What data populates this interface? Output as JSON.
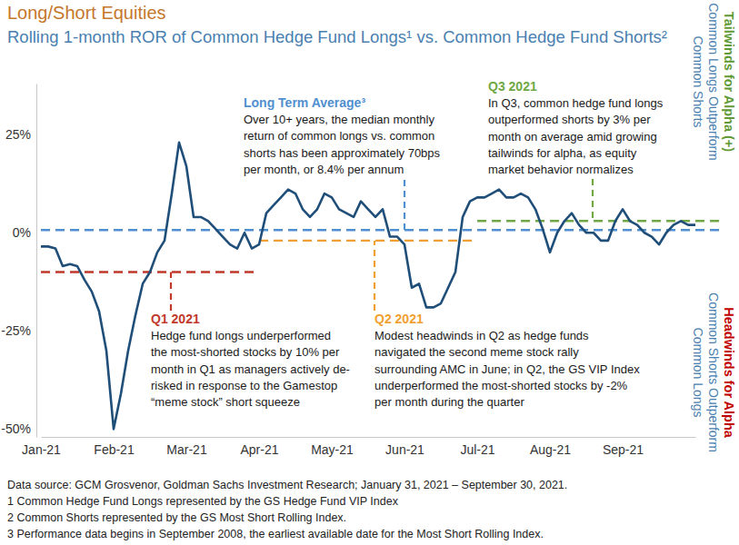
{
  "chart_data": {
    "type": "line",
    "title": "Long/Short Equities",
    "subtitle": "Rolling 1-month ROR of Common Hedge Fund Longs¹ vs. Common Hedge Fund Shorts²",
    "color": "#1f4e79",
    "categories": [
      "Jan-21",
      null,
      null,
      null,
      null,
      null,
      null,
      null,
      null,
      null,
      "Feb-21",
      null,
      null,
      null,
      null,
      null,
      null,
      null,
      null,
      null,
      "Mar-21",
      null,
      null,
      null,
      null,
      null,
      null,
      null,
      null,
      null,
      "Apr-21",
      null,
      null,
      null,
      null,
      null,
      null,
      null,
      null,
      null,
      "May-21",
      null,
      null,
      null,
      null,
      null,
      null,
      null,
      null,
      null,
      "Jun-21",
      null,
      null,
      null,
      null,
      null,
      null,
      null,
      null,
      null,
      "Jul-21",
      null,
      null,
      null,
      null,
      null,
      null,
      null,
      null,
      null,
      "Aug-21",
      null,
      null,
      null,
      null,
      null,
      null,
      null,
      null,
      null,
      "Sep-21",
      null,
      null,
      null,
      null,
      null,
      null,
      null,
      null,
      null,
      null
    ],
    "values": [
      -3.5,
      -3.5,
      -4,
      -8.5,
      -8,
      -8.5,
      -12,
      -15,
      -20,
      -30,
      -50,
      -41,
      -30,
      -21,
      -13,
      -10,
      -5,
      -2,
      10,
      23,
      17,
      4,
      4,
      3,
      1,
      -1,
      -3,
      -4,
      0,
      -4,
      -3,
      5,
      7,
      9,
      11,
      10,
      6,
      4,
      6,
      10,
      9,
      6,
      5,
      4,
      8,
      6,
      4,
      6,
      -1,
      -1,
      -3,
      -14,
      -13,
      -19,
      -19,
      -18,
      -14,
      -10,
      4,
      8,
      9,
      9,
      10,
      11,
      9,
      9,
      10,
      9,
      6,
      1,
      -5,
      0,
      3,
      5,
      2,
      0,
      0,
      -2,
      -2,
      3,
      6,
      3,
      2,
      0,
      -1,
      -3,
      0,
      2,
      3,
      2,
      2
    ],
    "ylim": [
      -52,
      38
    ],
    "yticks": [
      {
        "value": 25,
        "label": "25%"
      },
      {
        "value": 0,
        "label": "0%"
      },
      {
        "value": -25,
        "label": "-25%"
      },
      {
        "value": -50,
        "label": "-50%"
      }
    ],
    "grid": false,
    "annotations": [
      {
        "title": "Long Term Average³",
        "text": [
          "Over 10+ years, the median monthly",
          "return of common longs vs. common",
          "shorts has been approximately 70bps",
          "per month, or 8.4% per annum"
        ],
        "value": 0.7,
        "color": "#4f8fcf",
        "start": "Jan-21",
        "end": null
      },
      {
        "title": "Q3 2021",
        "text": [
          "In Q3, common hedge fund longs",
          "outperformed shorts by 3% per",
          "month on average amid growing",
          "tailwinds for alpha, as equity",
          "market behavior normalizes"
        ],
        "value": 3,
        "color": "#70a845",
        "start": "Jul-21",
        "end": null
      },
      {
        "title": "Q1 2021",
        "text": [
          "Hedge fund longs underperformed",
          "the most-shorted stocks by 10% per",
          "month in Q1 as managers actively de-",
          "risked in response to the Gamestop",
          "“meme stock” short squeeze"
        ],
        "value": -10,
        "color": "#c0392b",
        "start": "Jan-21",
        "end": "Apr-21"
      },
      {
        "title": "Q2 2021",
        "text": [
          "Modest headwinds in Q2 as hedge funds",
          "navigated the second meme stock rally",
          "surrounding AMC in June; in Q2, the GS VIP Index",
          "underperformed the most-shorted stocks by -2%",
          "per month during the quarter"
        ],
        "value": -2,
        "color": "#f0a030",
        "start": "Apr-21",
        "end": "Jul-21"
      }
    ],
    "side_labels": [
      {
        "title": "Tailwinds for Alpha (+)",
        "color": "#5f9a35",
        "lines": [
          "Common Longs Outperform",
          "Common Shorts"
        ]
      },
      {
        "title": "Headwinds for Alpha",
        "color": "#c00000",
        "lines": [
          "Common Shorts Outperform",
          "Common Longs"
        ]
      }
    ],
    "footnotes": [
      "Data source: GCM Grosvenor, Goldman Sachs Investment Research; January 31, 2021 – September 30, 2021.",
      "1 Common Hedge Fund Longs represented by the GS Hedge Fund VIP Index",
      "2 Common Shorts represented by the GS Most Short Rolling Index.",
      "3 Performance data begins in September 2008, the earliest available date for the Most Short Rolling Index."
    ]
  }
}
